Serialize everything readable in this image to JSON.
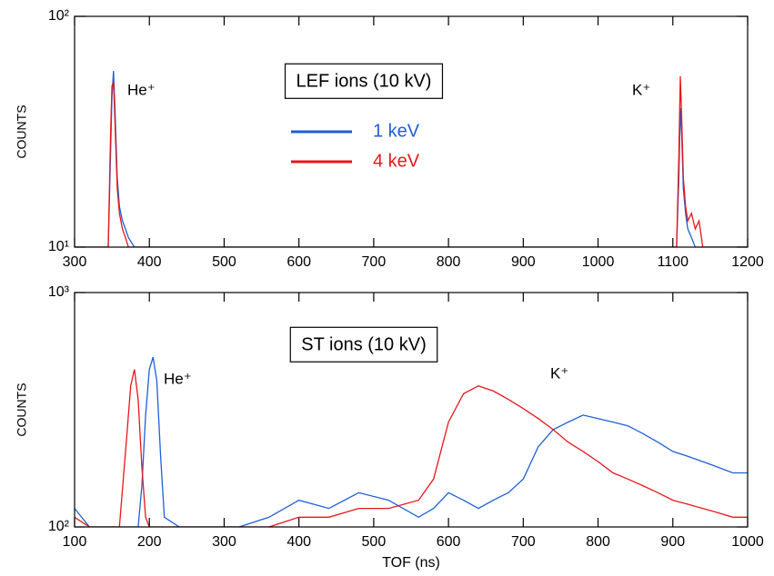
{
  "chart_data": [
    {
      "type": "line",
      "title": "LEF ions (10 kV)",
      "ylabel": "COUNTS",
      "ylog": true,
      "legend": true,
      "annotations": [
        "He⁺",
        "K⁺"
      ],
      "xlim": [
        300,
        1200
      ],
      "xticks": [
        300,
        400,
        500,
        600,
        700,
        800,
        900,
        1000,
        1100,
        1200
      ],
      "ylim": [
        10,
        100
      ],
      "yticks": [
        {
          "value": 10,
          "label": "10¹"
        },
        {
          "value": 100,
          "label": "10²"
        }
      ],
      "x": [
        300,
        345,
        348,
        350,
        352,
        354,
        357,
        360,
        364,
        368,
        372,
        380,
        1100,
        1105,
        1108,
        1110,
        1112,
        1114,
        1117,
        1120,
        1125,
        1130,
        1135,
        1140,
        1200
      ],
      "series": [
        {
          "name": "1 keV",
          "color": "#1f5fd6",
          "values": [
            10,
            10,
            25,
            45,
            58,
            40,
            20,
            15,
            13,
            12,
            11,
            10,
            10,
            10,
            20,
            40,
            30,
            18,
            14,
            12,
            11,
            10,
            10,
            10,
            10
          ]
        },
        {
          "name": "4 keV",
          "color": "#e8161b",
          "values": [
            10,
            10,
            30,
            50,
            52,
            35,
            18,
            14,
            12,
            11,
            10,
            10,
            10,
            10,
            25,
            55,
            35,
            20,
            15,
            13,
            14,
            12,
            13,
            10,
            10
          ]
        }
      ]
    },
    {
      "type": "line",
      "title": "ST ions (10 kV)",
      "ylabel": "COUNTS",
      "xlabel": "TOF (ns)",
      "ylog": true,
      "legend": false,
      "annotations": [
        "He⁺",
        "K⁺"
      ],
      "xlim": [
        100,
        1000
      ],
      "xticks": [
        100,
        200,
        300,
        400,
        500,
        600,
        700,
        800,
        900,
        1000
      ],
      "ylim": [
        100,
        1000
      ],
      "yticks": [
        {
          "value": 100,
          "label": "10²"
        },
        {
          "value": 1000,
          "label": "10³"
        }
      ],
      "x": [
        100,
        120,
        140,
        160,
        170,
        175,
        180,
        185,
        190,
        195,
        200,
        205,
        210,
        215,
        220,
        240,
        280,
        320,
        360,
        400,
        440,
        480,
        520,
        560,
        580,
        600,
        620,
        640,
        660,
        680,
        700,
        720,
        740,
        760,
        780,
        800,
        820,
        840,
        860,
        880,
        900,
        920,
        940,
        960,
        980,
        1000
      ],
      "series": [
        {
          "name": "1 keV",
          "color": "#1f5fd6",
          "values": [
            120,
            100,
            100,
            100,
            100,
            100,
            100,
            100,
            150,
            300,
            470,
            530,
            420,
            200,
            110,
            100,
            100,
            100,
            110,
            130,
            120,
            140,
            130,
            110,
            120,
            140,
            130,
            120,
            130,
            140,
            160,
            220,
            260,
            280,
            300,
            290,
            280,
            270,
            250,
            230,
            210,
            200,
            190,
            180,
            170,
            170
          ]
        },
        {
          "name": "4 keV",
          "color": "#e8161b",
          "values": [
            110,
            100,
            100,
            100,
            250,
            400,
            470,
            350,
            180,
            110,
            100,
            100,
            100,
            100,
            100,
            100,
            100,
            100,
            100,
            110,
            110,
            120,
            120,
            130,
            160,
            280,
            370,
            400,
            380,
            350,
            320,
            290,
            260,
            230,
            210,
            190,
            170,
            160,
            150,
            140,
            130,
            125,
            120,
            115,
            110,
            110
          ]
        }
      ]
    }
  ]
}
